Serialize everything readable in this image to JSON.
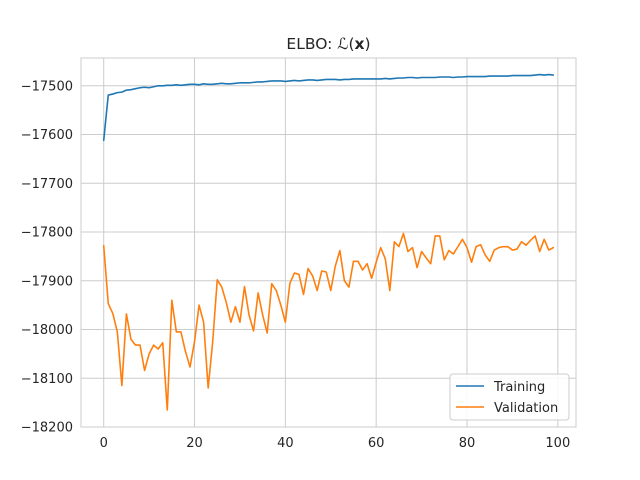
{
  "chart_data": {
    "type": "line",
    "title": "ELBO: ℒ(x)",
    "title_parts": {
      "prefix": "ELBO: ℒ(",
      "bold": "x",
      "suffix": ")"
    },
    "xlabel": "",
    "ylabel": "",
    "xlim": [
      -5,
      104
    ],
    "ylim": [
      -18200,
      -17443
    ],
    "xticks": [
      0,
      20,
      40,
      60,
      80,
      100
    ],
    "yticks": [
      -18200,
      -18100,
      -18000,
      -17900,
      -17800,
      -17700,
      -17600,
      -17500
    ],
    "grid": true,
    "legend_position": "lower-right",
    "series": [
      {
        "name": "Training",
        "color": "#1f77b4",
        "x": [
          0,
          1,
          2,
          3,
          4,
          5,
          6,
          7,
          8,
          9,
          10,
          11,
          12,
          13,
          14,
          15,
          16,
          17,
          18,
          19,
          20,
          21,
          22,
          23,
          24,
          25,
          26,
          27,
          28,
          29,
          30,
          31,
          32,
          33,
          34,
          35,
          36,
          37,
          38,
          39,
          40,
          41,
          42,
          43,
          44,
          45,
          46,
          47,
          48,
          49,
          50,
          51,
          52,
          53,
          54,
          55,
          56,
          57,
          58,
          59,
          60,
          61,
          62,
          63,
          64,
          65,
          66,
          67,
          68,
          69,
          70,
          71,
          72,
          73,
          74,
          75,
          76,
          77,
          78,
          79,
          80,
          81,
          82,
          83,
          84,
          85,
          86,
          87,
          88,
          89,
          90,
          91,
          92,
          93,
          94,
          95,
          96,
          97,
          98,
          99
        ],
        "values": [
          -17612,
          -17519,
          -17517,
          -17514,
          -17513,
          -17509,
          -17508,
          -17506,
          -17504,
          -17503,
          -17504,
          -17502,
          -17500,
          -17500,
          -17499,
          -17499,
          -17498,
          -17499,
          -17498,
          -17497,
          -17497,
          -17498,
          -17496,
          -17497,
          -17497,
          -17496,
          -17495,
          -17496,
          -17496,
          -17495,
          -17494,
          -17494,
          -17494,
          -17493,
          -17492,
          -17492,
          -17491,
          -17490,
          -17490,
          -17490,
          -17491,
          -17490,
          -17489,
          -17490,
          -17489,
          -17488,
          -17488,
          -17489,
          -17488,
          -17487,
          -17487,
          -17487,
          -17488,
          -17487,
          -17487,
          -17486,
          -17486,
          -17486,
          -17486,
          -17486,
          -17486,
          -17486,
          -17485,
          -17486,
          -17485,
          -17484,
          -17484,
          -17483,
          -17483,
          -17484,
          -17483,
          -17483,
          -17483,
          -17483,
          -17482,
          -17482,
          -17482,
          -17483,
          -17482,
          -17482,
          -17481,
          -17481,
          -17481,
          -17481,
          -17481,
          -17480,
          -17480,
          -17480,
          -17480,
          -17480,
          -17479,
          -17479,
          -17479,
          -17479,
          -17479,
          -17478,
          -17477,
          -17478,
          -17477,
          -17478
        ]
      },
      {
        "name": "Validation",
        "color": "#ff7f0e",
        "x": [
          0,
          1,
          2,
          3,
          4,
          5,
          6,
          7,
          8,
          9,
          10,
          11,
          12,
          13,
          14,
          15,
          16,
          17,
          18,
          19,
          20,
          21,
          22,
          23,
          24,
          25,
          26,
          27,
          28,
          29,
          30,
          31,
          32,
          33,
          34,
          35,
          36,
          37,
          38,
          39,
          40,
          41,
          42,
          43,
          44,
          45,
          46,
          47,
          48,
          49,
          50,
          51,
          52,
          53,
          54,
          55,
          56,
          57,
          58,
          59,
          60,
          61,
          62,
          63,
          64,
          65,
          66,
          67,
          68,
          69,
          70,
          71,
          72,
          73,
          74,
          75,
          76,
          77,
          78,
          79,
          80,
          81,
          82,
          83,
          84,
          85,
          86,
          87,
          88,
          89,
          90,
          91,
          92,
          93,
          94,
          95,
          96,
          97,
          98,
          99
        ],
        "values": [
          -17828,
          -17947,
          -17967,
          -18005,
          -18115,
          -17968,
          -18020,
          -18032,
          -18032,
          -18084,
          -18050,
          -18032,
          -18040,
          -18027,
          -18165,
          -17940,
          -18005,
          -18005,
          -18045,
          -18077,
          -18025,
          -17950,
          -17985,
          -18120,
          -18025,
          -17898,
          -17913,
          -17945,
          -17985,
          -17953,
          -17985,
          -17912,
          -17970,
          -18003,
          -17925,
          -17970,
          -18007,
          -17906,
          -17920,
          -17950,
          -17985,
          -17905,
          -17884,
          -17887,
          -17928,
          -17875,
          -17890,
          -17920,
          -17880,
          -17882,
          -17920,
          -17870,
          -17838,
          -17900,
          -17913,
          -17860,
          -17860,
          -17878,
          -17865,
          -17895,
          -17862,
          -17832,
          -17855,
          -17920,
          -17820,
          -17830,
          -17803,
          -17840,
          -17832,
          -17873,
          -17840,
          -17853,
          -17865,
          -17808,
          -17808,
          -17857,
          -17838,
          -17845,
          -17830,
          -17815,
          -17832,
          -17862,
          -17830,
          -17826,
          -17847,
          -17860,
          -17837,
          -17832,
          -17830,
          -17830,
          -17837,
          -17835,
          -17820,
          -17827,
          -17817,
          -17808,
          -17840,
          -17815,
          -17837,
          -17832
        ]
      }
    ]
  }
}
